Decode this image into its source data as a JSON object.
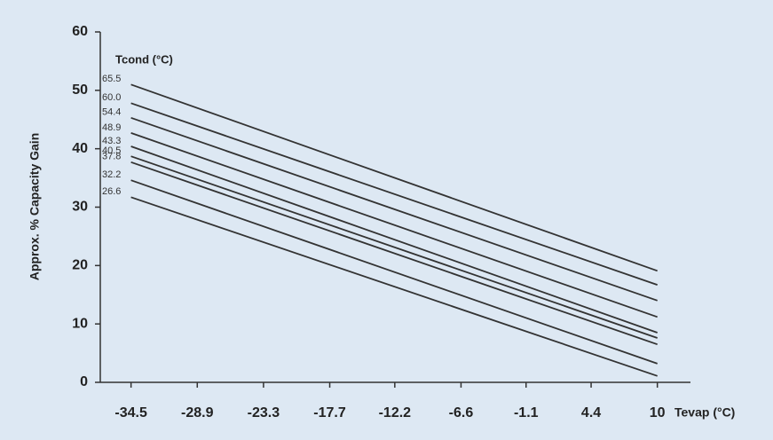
{
  "chart_data": {
    "type": "line",
    "x_label": "Tevap (°C)",
    "y_label": "Approx. % Capacity Gain",
    "legend_title": "Tcond (°C)",
    "x": [
      -34.5,
      10
    ],
    "xlim": [
      -37.1,
      12.8
    ],
    "xticks": [
      -34.5,
      -28.9,
      -23.3,
      -17.7,
      -12.2,
      -6.6,
      -1.1,
      4.4,
      10
    ],
    "ylim": [
      0,
      60
    ],
    "yticks": [
      0,
      10,
      20,
      30,
      40,
      50,
      60
    ],
    "grid": false,
    "series": [
      {
        "name": "65.5",
        "color": "#333333",
        "values": [
          51.0,
          19.1
        ]
      },
      {
        "name": "60.0",
        "color": "#333333",
        "values": [
          47.8,
          16.7
        ]
      },
      {
        "name": "54.4",
        "color": "#333333",
        "values": [
          45.3,
          14.0
        ]
      },
      {
        "name": "48.9",
        "color": "#333333",
        "values": [
          42.7,
          11.2
        ]
      },
      {
        "name": "43.3",
        "color": "#333333",
        "values": [
          40.4,
          8.5
        ]
      },
      {
        "name": "40.5",
        "color": "#333333",
        "values": [
          38.7,
          7.6
        ]
      },
      {
        "name": "37.8",
        "color": "#333333",
        "values": [
          37.7,
          6.5
        ]
      },
      {
        "name": "32.2",
        "color": "#333333",
        "values": [
          34.6,
          3.2
        ]
      },
      {
        "name": "26.6",
        "color": "#333333",
        "values": [
          31.7,
          1.1
        ]
      }
    ]
  }
}
